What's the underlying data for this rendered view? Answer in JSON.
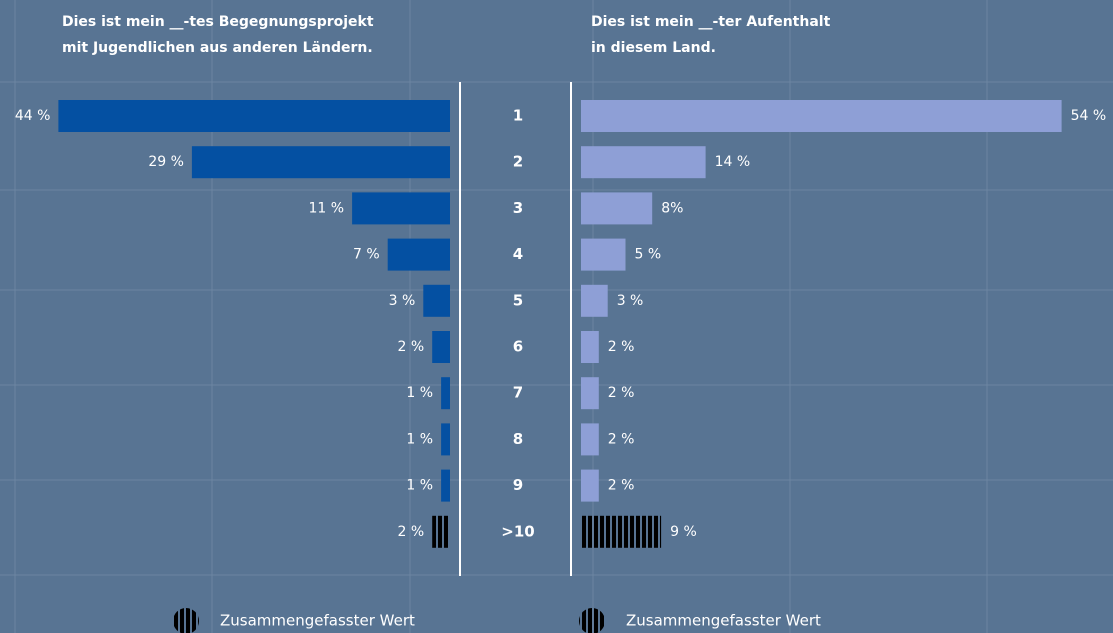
{
  "chart_data": [
    {
      "type": "hbar-left",
      "title": [
        "Dies ist mein __-tes Begegnungsprojekt",
        "mit Jugendlichen aus anderen Ländern."
      ],
      "categories": [
        "1",
        "2",
        "3",
        "4",
        "5",
        "6",
        "7",
        "8",
        "9",
        ">10"
      ],
      "values": [
        44,
        29,
        11,
        7,
        3,
        2,
        1,
        1,
        1,
        2
      ],
      "value_labels": [
        "44 %",
        "29 %",
        "11 %",
        "7 %",
        "3 %",
        "2 %",
        "1 %",
        "1 %",
        "1 %",
        "2 %"
      ],
      "color": "#0450a2",
      "xlim": [
        0,
        50
      ],
      "combined_index": 9,
      "legend": "Zusammengefasster Wert"
    },
    {
      "type": "hbar-right",
      "title": [
        "Dies ist mein __-ter Aufenthalt",
        "in diesem Land."
      ],
      "values": [
        54,
        14,
        8,
        5,
        3,
        2,
        2,
        2,
        2,
        9
      ],
      "value_labels": [
        "54 %",
        "14 %",
        "8%",
        "5 %",
        "3 %",
        "2 %",
        "2 %",
        "2 %",
        "2 %",
        "9 %"
      ],
      "color": "#8e9fd6",
      "xlim": [
        0,
        60
      ],
      "combined_index": 9,
      "legend": "Zusammengefasster Wert"
    }
  ]
}
